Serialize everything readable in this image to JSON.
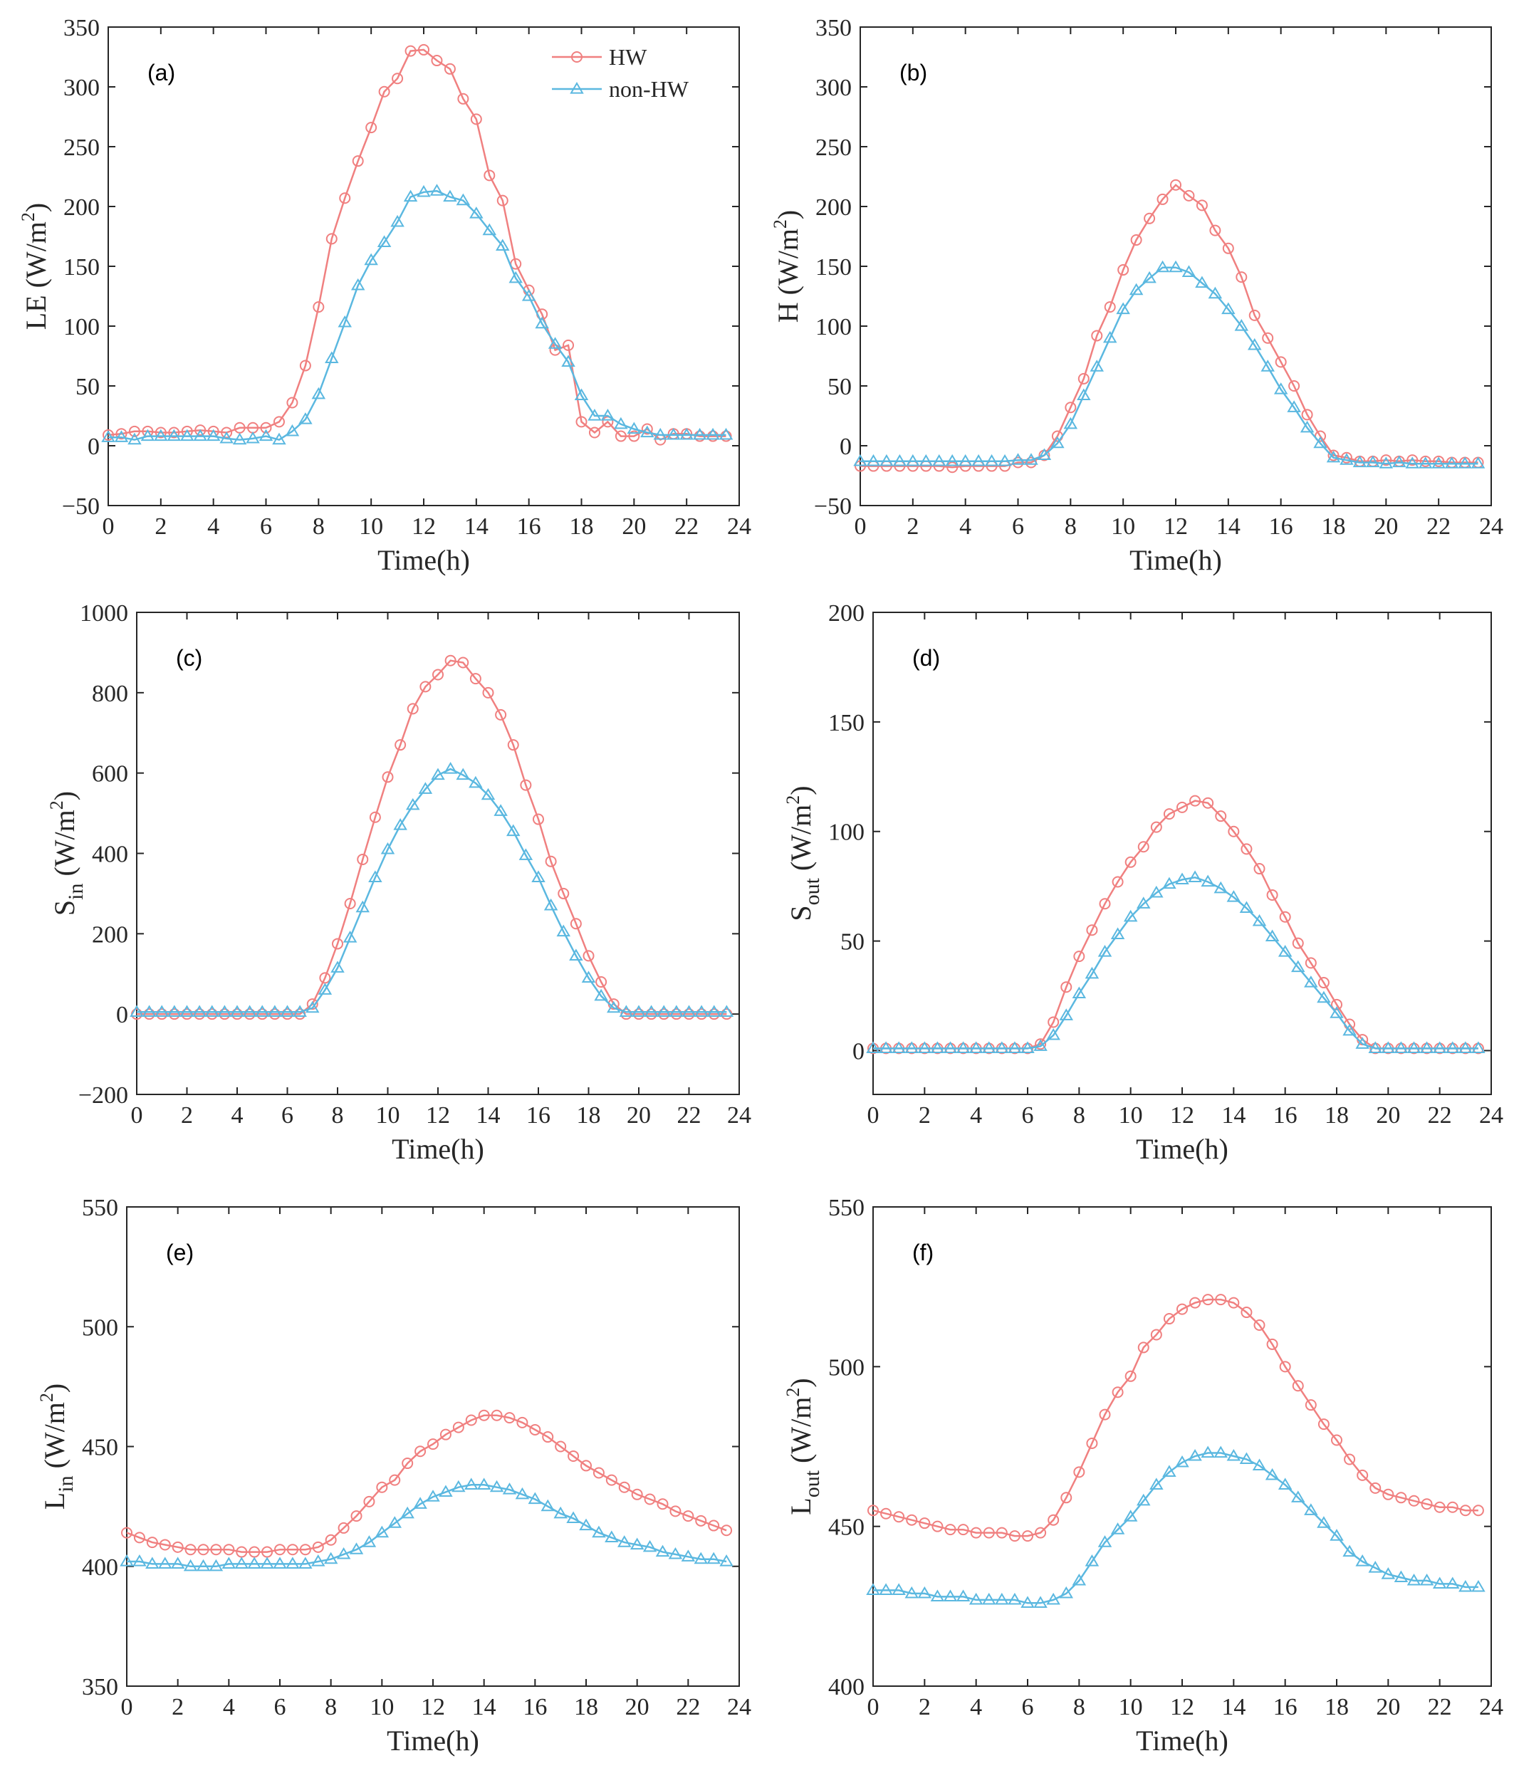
{
  "chart_data": [
    {
      "type": "line",
      "panel_label": "(a)",
      "xlabel": "Time(h)",
      "ylabel": {
        "base": "LE (W/m",
        "sup": "2",
        "close": ")"
      },
      "xlim": [
        0,
        24
      ],
      "ylim": [
        -50,
        350
      ],
      "xticks": [
        0,
        2,
        4,
        6,
        8,
        10,
        12,
        14,
        16,
        18,
        20,
        22,
        24
      ],
      "yticks": [
        -50,
        0,
        50,
        100,
        150,
        200,
        250,
        300,
        350
      ],
      "ytick_labels": [
        "−50",
        "0",
        "50",
        "100",
        "150",
        "200",
        "250",
        "300",
        "350"
      ],
      "legend": {
        "position": "top-right",
        "entries": [
          "HW",
          "non-HW"
        ]
      },
      "series": [
        {
          "name": "HW",
          "values": [
            9,
            10,
            12,
            12,
            11,
            11,
            12,
            13,
            12,
            11,
            15,
            15,
            15,
            20,
            36,
            67,
            116,
            173,
            207,
            238,
            266,
            296,
            307,
            330,
            331,
            322,
            315,
            290,
            273,
            226,
            205,
            152,
            130,
            110,
            80,
            84,
            20,
            11,
            20,
            8,
            8,
            14,
            5,
            10,
            10,
            8,
            8,
            8
          ]
        },
        {
          "name": "non-HW",
          "values": [
            7,
            7,
            5,
            8,
            8,
            8,
            8,
            8,
            8,
            6,
            5,
            6,
            8,
            5,
            12,
            22,
            43,
            73,
            103,
            134,
            155,
            170,
            187,
            208,
            212,
            213,
            208,
            205,
            194,
            180,
            167,
            140,
            125,
            102,
            85,
            70,
            42,
            25,
            25,
            18,
            14,
            11,
            9,
            9,
            9,
            9,
            9,
            9
          ]
        }
      ]
    },
    {
      "type": "line",
      "panel_label": "(b)",
      "xlabel": "Time(h)",
      "ylabel": {
        "base": "H (W/m",
        "sup": "2",
        "close": ")"
      },
      "xlim": [
        0,
        24
      ],
      "ylim": [
        -50,
        350
      ],
      "xticks": [
        0,
        2,
        4,
        6,
        8,
        10,
        12,
        14,
        16,
        18,
        20,
        22,
        24
      ],
      "yticks": [
        -50,
        0,
        50,
        100,
        150,
        200,
        250,
        300,
        350
      ],
      "ytick_labels": [
        "−50",
        "0",
        "50",
        "100",
        "150",
        "200",
        "250",
        "300",
        "350"
      ],
      "series": [
        {
          "name": "HW",
          "values": [
            -17,
            -17,
            -17,
            -17,
            -17,
            -17,
            -17,
            -18,
            -17,
            -17,
            -17,
            -17,
            -14,
            -14,
            -8,
            8,
            32,
            56,
            92,
            116,
            147,
            172,
            190,
            206,
            218,
            209,
            201,
            180,
            165,
            141,
            109,
            90,
            70,
            50,
            26,
            8,
            -8,
            -10,
            -13,
            -13,
            -12,
            -13,
            -12,
            -13,
            -13,
            -14,
            -14,
            -14
          ]
        },
        {
          "name": "non-HW",
          "values": [
            -13,
            -13,
            -13,
            -13,
            -13,
            -13,
            -13,
            -13,
            -13,
            -13,
            -13,
            -13,
            -12,
            -12,
            -8,
            2,
            18,
            42,
            66,
            90,
            114,
            130,
            140,
            149,
            149,
            145,
            136,
            127,
            114,
            100,
            84,
            66,
            47,
            32,
            15,
            2,
            -10,
            -12,
            -14,
            -14,
            -15,
            -14,
            -15,
            -15,
            -15,
            -15,
            -15,
            -15
          ]
        }
      ]
    },
    {
      "type": "line",
      "panel_label": "(c)",
      "xlabel": "Time(h)",
      "ylabel": {
        "base": "S",
        "sub": "in",
        "rest": " (W/m",
        "sup": "2",
        "close": ")"
      },
      "xlim": [
        0,
        24
      ],
      "ylim": [
        -200,
        1000
      ],
      "xticks": [
        0,
        2,
        4,
        6,
        8,
        10,
        12,
        14,
        16,
        18,
        20,
        22,
        24
      ],
      "yticks": [
        -200,
        0,
        200,
        400,
        600,
        800,
        1000
      ],
      "ytick_labels": [
        "−200",
        "0",
        "200",
        "400",
        "600",
        "800",
        "1000"
      ],
      "series": [
        {
          "name": "HW",
          "values": [
            0,
            0,
            0,
            0,
            0,
            0,
            0,
            0,
            0,
            0,
            0,
            0,
            0,
            0,
            25,
            90,
            175,
            275,
            385,
            490,
            590,
            670,
            760,
            815,
            845,
            880,
            875,
            835,
            800,
            745,
            670,
            570,
            485,
            380,
            300,
            225,
            145,
            80,
            25,
            0,
            0,
            0,
            0,
            0,
            0,
            0,
            0,
            0
          ]
        },
        {
          "name": "non-HW",
          "values": [
            5,
            5,
            5,
            5,
            5,
            5,
            5,
            5,
            5,
            5,
            5,
            5,
            5,
            5,
            15,
            60,
            115,
            190,
            265,
            340,
            410,
            470,
            520,
            560,
            595,
            610,
            595,
            575,
            545,
            505,
            455,
            395,
            340,
            270,
            205,
            145,
            90,
            45,
            15,
            5,
            5,
            5,
            5,
            5,
            5,
            5,
            5,
            5
          ]
        }
      ]
    },
    {
      "type": "line",
      "panel_label": "(d)",
      "xlabel": "Time(h)",
      "ylabel": {
        "base": "S",
        "sub": "out",
        "rest": " (W/m",
        "sup": "2",
        "close": ")"
      },
      "xlim": [
        0,
        24
      ],
      "ylim": [
        -20,
        200
      ],
      "xticks": [
        0,
        2,
        4,
        6,
        8,
        10,
        12,
        14,
        16,
        18,
        20,
        22,
        24
      ],
      "yticks": [
        0,
        50,
        100,
        150,
        200
      ],
      "ytick_labels": [
        "0",
        "50",
        "100",
        "150",
        "200"
      ],
      "series": [
        {
          "name": "HW",
          "values": [
            1,
            1,
            1,
            1,
            1,
            1,
            1,
            1,
            1,
            1,
            1,
            1,
            1,
            3,
            13,
            29,
            43,
            55,
            67,
            77,
            86,
            93,
            102,
            108,
            111,
            114,
            113,
            107,
            100,
            92,
            83,
            71,
            61,
            49,
            40,
            31,
            21,
            12,
            5,
            1,
            1,
            1,
            1,
            1,
            1,
            1,
            1,
            1
          ]
        },
        {
          "name": "non-HW",
          "values": [
            1,
            1,
            1,
            1,
            1,
            1,
            1,
            1,
            1,
            1,
            1,
            1,
            1,
            2,
            7,
            16,
            26,
            35,
            45,
            53,
            61,
            67,
            72,
            76,
            78,
            79,
            77,
            74,
            70,
            65,
            59,
            52,
            45,
            38,
            31,
            24,
            17,
            9,
            3,
            1,
            1,
            1,
            1,
            1,
            1,
            1,
            1,
            1
          ]
        }
      ]
    },
    {
      "type": "line",
      "panel_label": "(e)",
      "xlabel": "Time(h)",
      "ylabel": {
        "base": "L",
        "sub": "in",
        "rest": " (W/m",
        "sup": "2",
        "close": ")"
      },
      "xlim": [
        0,
        24
      ],
      "ylim": [
        350,
        550
      ],
      "xticks": [
        0,
        2,
        4,
        6,
        8,
        10,
        12,
        14,
        16,
        18,
        20,
        22,
        24
      ],
      "yticks": [
        350,
        400,
        450,
        500,
        550
      ],
      "ytick_labels": [
        "350",
        "400",
        "450",
        "500",
        "550"
      ],
      "series": [
        {
          "name": "HW",
          "values": [
            414,
            412,
            410,
            409,
            408,
            407,
            407,
            407,
            407,
            406,
            406,
            406,
            407,
            407,
            407,
            408,
            411,
            416,
            421,
            427,
            433,
            436,
            443,
            448,
            451,
            455,
            458,
            461,
            463,
            463,
            462,
            460,
            457,
            454,
            450,
            446,
            442,
            439,
            436,
            433,
            430,
            428,
            426,
            423,
            421,
            419,
            417,
            415
          ]
        },
        {
          "name": "non-HW",
          "values": [
            402,
            402,
            401,
            401,
            401,
            400,
            400,
            400,
            401,
            401,
            401,
            401,
            401,
            401,
            401,
            402,
            403,
            405,
            407,
            410,
            414,
            418,
            422,
            426,
            429,
            431,
            433,
            434,
            434,
            433,
            432,
            430,
            428,
            425,
            422,
            420,
            417,
            414,
            412,
            410,
            409,
            408,
            406,
            405,
            404,
            403,
            403,
            402
          ]
        }
      ]
    },
    {
      "type": "line",
      "panel_label": "(f)",
      "xlabel": "Time(h)",
      "ylabel": {
        "base": "L",
        "sub": "out",
        "rest": " (W/m",
        "sup": "2",
        "close": ")"
      },
      "xlim": [
        0,
        24
      ],
      "ylim": [
        400,
        550
      ],
      "xticks": [
        0,
        2,
        4,
        6,
        8,
        10,
        12,
        14,
        16,
        18,
        20,
        22,
        24
      ],
      "yticks": [
        400,
        450,
        500,
        550
      ],
      "ytick_labels": [
        "400",
        "450",
        "500",
        "550"
      ],
      "series": [
        {
          "name": "HW",
          "values": [
            455,
            454,
            453,
            452,
            451,
            450,
            449,
            449,
            448,
            448,
            448,
            447,
            447,
            448,
            452,
            459,
            467,
            476,
            485,
            492,
            497,
            506,
            510,
            515,
            518,
            520,
            521,
            521,
            520,
            517,
            513,
            507,
            500,
            494,
            488,
            482,
            477,
            471,
            466,
            462,
            460,
            459,
            458,
            457,
            456,
            456,
            455,
            455
          ]
        },
        {
          "name": "non-HW",
          "values": [
            430,
            430,
            430,
            429,
            429,
            428,
            428,
            428,
            427,
            427,
            427,
            427,
            426,
            426,
            427,
            429,
            433,
            439,
            445,
            449,
            453,
            458,
            463,
            467,
            470,
            472,
            473,
            473,
            472,
            471,
            469,
            466,
            463,
            459,
            455,
            451,
            447,
            442,
            439,
            437,
            435,
            434,
            433,
            433,
            432,
            432,
            431,
            431
          ]
        }
      ]
    }
  ],
  "colors": {
    "HW": "#F08080",
    "non-HW": "#5BB8E0",
    "axis": "#262626"
  }
}
